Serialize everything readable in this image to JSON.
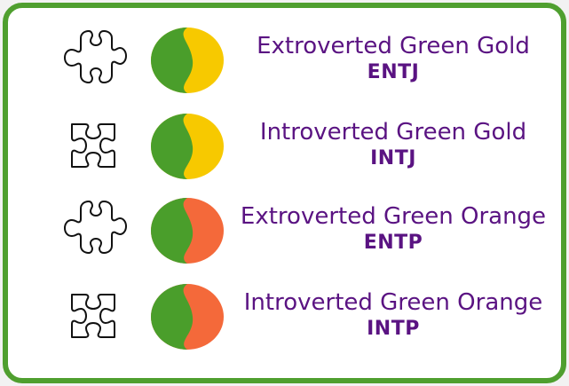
{
  "types": [
    {
      "title": "Extroverted Green Gold",
      "code": "ENTJ",
      "puzzle_icon": "puzzle-piece-outie-icon",
      "colors": {
        "primary": "#4a9e2b",
        "secondary": "#f7c900"
      }
    },
    {
      "title": "Introverted Green Gold",
      "code": "INTJ",
      "puzzle_icon": "puzzle-piece-innie-icon",
      "colors": {
        "primary": "#4a9e2b",
        "secondary": "#f7c900"
      }
    },
    {
      "title": "Extroverted Green Orange",
      "code": "ENTP",
      "puzzle_icon": "puzzle-piece-outie-icon",
      "colors": {
        "primary": "#4a9e2b",
        "secondary": "#f4693a"
      }
    },
    {
      "title": "Introverted Green Orange",
      "code": "INTP",
      "puzzle_icon": "puzzle-piece-innie-icon",
      "colors": {
        "primary": "#4a9e2b",
        "secondary": "#f4693a"
      }
    }
  ],
  "colors": {
    "border": "#4f9f2f",
    "text": "#5a1382"
  }
}
